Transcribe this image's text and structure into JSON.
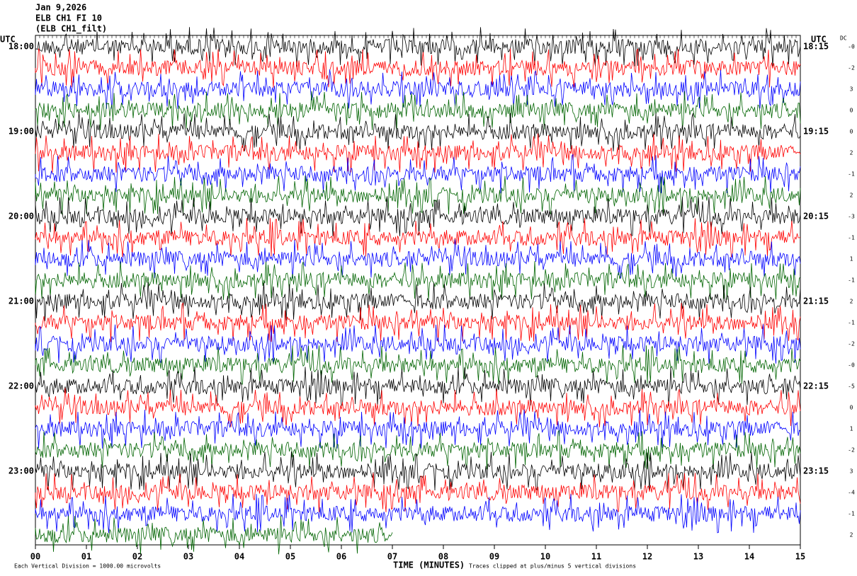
{
  "chart_data": {
    "type": "helicorder",
    "title_lines": [
      "Jan 9,2026",
      "ELB CH1 FI 10",
      "(ELB CH1_filt)"
    ],
    "left_axis_label": "UTC",
    "right_axis_label": "UTC",
    "dc_label": "DC",
    "left_hours": [
      "18:00",
      "19:00",
      "20:00",
      "21:00",
      "22:00",
      "23:00"
    ],
    "right_hours": [
      "18:15",
      "19:15",
      "20:15",
      "21:15",
      "22:15",
      "23:15"
    ],
    "dc_values": [
      "-0",
      "-2",
      "3",
      "0",
      "0",
      "2",
      "-1",
      "2",
      "-3",
      "-1",
      "1",
      "-1",
      "2",
      "-1",
      "-2",
      "-0",
      "-5",
      "0",
      "1",
      "-2",
      "3",
      "-4",
      "-1",
      "2"
    ],
    "trace_colors": [
      "#000000",
      "#ff0000",
      "#0000ff",
      "#006400"
    ],
    "xlabel": "TIME (MINUTES)",
    "xlim": [
      0,
      15
    ],
    "xticks": [
      {
        "value": 0,
        "label": "00"
      },
      {
        "value": 1,
        "label": "01"
      },
      {
        "value": 2,
        "label": "02"
      },
      {
        "value": 3,
        "label": "03"
      },
      {
        "value": 4,
        "label": "04"
      },
      {
        "value": 5,
        "label": "05"
      },
      {
        "value": 6,
        "label": "06"
      },
      {
        "value": 7,
        "label": "07"
      },
      {
        "value": 8,
        "label": "08"
      },
      {
        "value": 9,
        "label": "09"
      },
      {
        "value": 10,
        "label": "10"
      },
      {
        "value": 11,
        "label": "11"
      },
      {
        "value": 12,
        "label": "12"
      },
      {
        "value": 13,
        "label": "13"
      },
      {
        "value": 14,
        "label": "14"
      },
      {
        "value": 15,
        "label": "15"
      }
    ],
    "last_trace_end": 7,
    "footer_left": "Each Vertical Division = 1000.00 microvolts",
    "footer_right": "Traces clipped at plus/minus 5 vertical divisions"
  }
}
